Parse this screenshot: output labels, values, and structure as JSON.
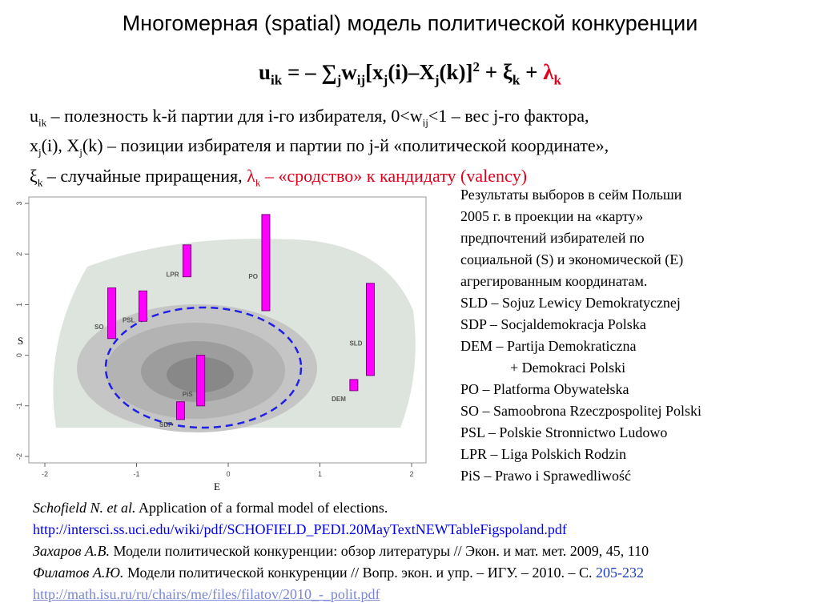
{
  "slide": {
    "title": "Многомерная (spatial) модель политической конкуренции",
    "formula": {
      "u": "u",
      "u_sub": "ik",
      "eq": " = – ∑",
      "j_sub": "j",
      "w": "w",
      "w_sub": "ij",
      "bracket_x": "[x",
      "xj_sub": "j",
      "i_paren": "(i)–X",
      "Xj_sub": "j",
      "k_paren": "(k)]",
      "sq": "2",
      "plus_xi": " + ξ",
      "xi_sub": "k",
      "plus": " + ",
      "lambda": "λ",
      "lambda_sub": "k"
    },
    "definitions": {
      "line1_a": "u",
      "line1_a_sub": "ik",
      "line1_b": " – полезность k-й партии для  i-го избирателя, 0<w",
      "line1_b_sub": "ij",
      "line1_c": "<1 – вес j-го фактора,",
      "line2_a": "x",
      "line2_a_sub": "j",
      "line2_b": "(i), X",
      "line2_b_sub": "j",
      "line2_c": "(k) – позиции избирателя и партии по j-й «политической координате»,",
      "line3_a": "ξ",
      "line3_a_sub": "k",
      "line3_b": " – случайные приращения, ",
      "line3_c": "λ",
      "line3_c_sub": "k",
      "line3_d": " – «сродство» к кандидату (valency)"
    },
    "legend": {
      "l1": "Результаты выборов в сейм Польши",
      "l2": "2005 г. в проекции на «карту»",
      "l3": "предпочтений избирателей по",
      "l4": "социальной (S) и экономической (E)",
      "l5": "агрегированным координатам.",
      "l6": "SLD – Sojuz Lewicy Demokratycznej",
      "l7": "SDP – Socjaldemokracja Polska",
      "l8": "DEM – Partija Demokraticzna",
      "l9": "+ Demokraci Polski",
      "l10": "PO –  Platforma Obywatełska",
      "l11": "SO –  Samoobrona Rzeczpospolitej Polski",
      "l12": "PSL – Polskie Stronnictwo Ludowo",
      "l13": "LPR – Liga Polskich Rodzin",
      "l14": "PiS – Prawo i Sprawedliwość"
    },
    "references": {
      "r1_author": "Schofield N. et al.",
      "r1_text": " Application of a formal model of elections.",
      "r1_url": "http://intersci.ss.uci.edu/wiki/pdf/SCHOFIELD_PEDI.20MayTextNEWTableFigspoland.pdf",
      "r2_author": "Захаров А.В.",
      "r2_text": " Модели политической конкуренции: обзор литературы // Экон. и мат. мет. 2009, 45, 110",
      "r3_author": "Филатов А.Ю.",
      "r3_text": " Модели политической конкуренции // Вопр. экон. и упр. – ИГУ. – 2010. – С. ",
      "r3_pages": "205-232",
      "r4_url": "http://math.isu.ru/ru/chairs/me/files/filatov/2010_-_polit.pdf"
    }
  },
  "chart_data": {
    "type": "scatter",
    "xlabel": "E",
    "ylabel": "S",
    "xlim": [
      -2,
      2
    ],
    "ylim": [
      -2,
      3
    ],
    "xticks": [
      "-2",
      "-1",
      "0",
      "1",
      "2"
    ],
    "yticks": [
      "-2",
      "-1",
      "0",
      "1",
      "2",
      "3"
    ],
    "bar_color": "#ff00ff",
    "ellipse_color": "#1f1fe6",
    "parties": [
      {
        "label": "SO",
        "x": -1.27,
        "y_low": 0.33,
        "y_high": 1.33
      },
      {
        "label": "PSL",
        "x": -0.93,
        "y_low": 0.67,
        "y_high": 1.27
      },
      {
        "label": "LPR",
        "x": -0.45,
        "y_low": 1.55,
        "y_high": 2.18
      },
      {
        "label": "PO",
        "x": 0.41,
        "y_low": 0.88,
        "y_high": 2.78
      },
      {
        "label": "PiS",
        "x": -0.3,
        "y_low": -1.0,
        "y_high": 0.0
      },
      {
        "label": "SDP",
        "x": -0.52,
        "y_low": -1.27,
        "y_high": -0.92
      },
      {
        "label": "DEM",
        "x": 1.37,
        "y_low": -0.7,
        "y_high": -0.48
      },
      {
        "label": "SLD",
        "x": 1.55,
        "y_low": -0.4,
        "y_high": 1.42
      }
    ]
  }
}
